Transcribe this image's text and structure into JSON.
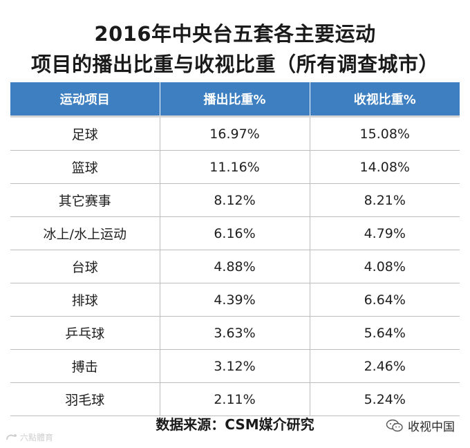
{
  "title": {
    "line1": "2016年中央台五套各主要运动",
    "line2": "项目的播出比重与收视比重（所有调查城市）"
  },
  "table": {
    "headers": [
      "运动项目",
      "播出比重%",
      "收视比重%"
    ],
    "rows": [
      [
        "足球",
        "16.97%",
        "15.08%"
      ],
      [
        "篮球",
        "11.16%",
        "14.08%"
      ],
      [
        "其它赛事",
        "8.12%",
        "8.21%"
      ],
      [
        "冰上/水上运动",
        "6.16%",
        "4.79%"
      ],
      [
        "台球",
        "4.88%",
        "4.08%"
      ],
      [
        "排球",
        "4.39%",
        "6.64%"
      ],
      [
        "乒乓球",
        "3.63%",
        "5.64%"
      ],
      [
        "搏击",
        "3.12%",
        "2.46%"
      ],
      [
        "羽毛球",
        "2.11%",
        "5.24%"
      ]
    ]
  },
  "source": "数据来源：CSM媒介研究",
  "watermark_left": "六點體育",
  "watermark_right": "收视中国",
  "colors": {
    "header_bg": "#3d7fc0",
    "header_text": "#ffffff",
    "grid_line": "#bcbcbc"
  },
  "icons": {
    "left_logo": "brand-logo-icon",
    "right_logo": "wechat-icon"
  }
}
